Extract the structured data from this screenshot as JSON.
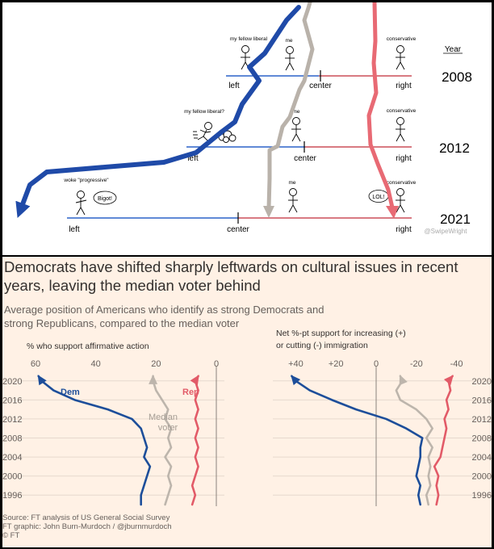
{
  "meme": {
    "year_header": "Year",
    "watermark": "@SwipeWright",
    "axis_labels": {
      "left": "left",
      "center": "center",
      "right": "right"
    },
    "rows": [
      {
        "year": "2008",
        "left_figure_label": "my fellow liberal",
        "me_label": "me",
        "right_figure_label": "conservative"
      },
      {
        "year": "2012",
        "left_figure_label": "my fellow liberal?",
        "me_label": "me",
        "right_figure_label": "conservative"
      },
      {
        "year": "2021",
        "left_figure_label": "woke \"progressive\"",
        "me_label": "me",
        "right_figure_label": "conservative",
        "left_bubble": "Bigot!",
        "right_bubble": "LOL!"
      }
    ],
    "colors": {
      "liberal": "#1f4aa8",
      "me": "#b9b2aa",
      "conservative": "#e86a74"
    }
  },
  "ft": {
    "title": "Democrats have shifted sharply leftwards on cultural issues in recent years, leaving the median voter behind",
    "subtitle": "Average position of Americans who identify as strong Democrats and strong Republicans, compared to the median voter",
    "source_line": "Source: FT analysis of US General Social Survey",
    "graphic_line": "FT graphic: John Burn-Murdoch / @jburnmurdoch",
    "copyright": "© FT",
    "colors": {
      "dem": "#1d4e9a",
      "rep": "#e25b68",
      "median": "#bdb5ac",
      "text": "#33302e",
      "muted": "#66605c"
    }
  },
  "chart_data": [
    {
      "type": "line",
      "title": "% who support affirmative action",
      "x_reversed": true,
      "xlim": [
        60,
        0
      ],
      "ylim": [
        1994,
        2022
      ],
      "x_ticks": [
        "60",
        "40",
        "20",
        "0"
      ],
      "y_ticks": [
        "2020",
        "2016",
        "2012",
        "2008",
        "2004",
        "2000",
        "1996"
      ],
      "series": [
        {
          "name": "Dem",
          "points": [
            [
              25,
              1994
            ],
            [
              25,
              1996
            ],
            [
              24,
              1998
            ],
            [
              23,
              2000
            ],
            [
              22,
              2002
            ],
            [
              24,
              2004
            ],
            [
              23,
              2006
            ],
            [
              24,
              2008
            ],
            [
              25,
              2010
            ],
            [
              28,
              2012
            ],
            [
              36,
              2014
            ],
            [
              47,
              2016
            ],
            [
              54,
              2018
            ],
            [
              58,
              2020
            ],
            [
              59,
              2021
            ]
          ]
        },
        {
          "name": "Median voter",
          "points": [
            [
              17,
              1994
            ],
            [
              16,
              1996
            ],
            [
              15,
              1998
            ],
            [
              16,
              2000
            ],
            [
              15,
              2002
            ],
            [
              17,
              2004
            ],
            [
              15,
              2006
            ],
            [
              16,
              2008
            ],
            [
              15,
              2010
            ],
            [
              17,
              2012
            ],
            [
              16,
              2014
            ],
            [
              18,
              2016
            ],
            [
              20,
              2018
            ],
            [
              21,
              2020
            ],
            [
              21,
              2021
            ]
          ]
        },
        {
          "name": "Rep",
          "points": [
            [
              8,
              1994
            ],
            [
              7,
              1996
            ],
            [
              8,
              1998
            ],
            [
              7,
              2000
            ],
            [
              6,
              2002
            ],
            [
              7,
              2004
            ],
            [
              6,
              2006
            ],
            [
              7,
              2008
            ],
            [
              6,
              2010
            ],
            [
              7,
              2012
            ],
            [
              6,
              2014
            ],
            [
              7,
              2016
            ],
            [
              6,
              2018
            ],
            [
              7,
              2020
            ],
            [
              6,
              2021
            ]
          ]
        }
      ],
      "annotations": [
        "Dem",
        "Median voter",
        "Rep"
      ]
    },
    {
      "type": "line",
      "title": "Net %-pt support for increasing (+) or cutting (-) immigration",
      "x_reversed": true,
      "xlim": [
        45,
        -45
      ],
      "ylim": [
        1994,
        2022
      ],
      "x_ticks": [
        "+40",
        "+20",
        "0",
        "-20",
        "-40"
      ],
      "y_ticks": [
        "2020",
        "2016",
        "2012",
        "2008",
        "2004",
        "2000",
        "1996"
      ],
      "series": [
        {
          "name": "Dem",
          "points": [
            [
              -22,
              1994
            ],
            [
              -21,
              1996
            ],
            [
              -22,
              1998
            ],
            [
              -20,
              2000
            ],
            [
              -21,
              2002
            ],
            [
              -22,
              2004
            ],
            [
              -22,
              2006
            ],
            [
              -23,
              2008
            ],
            [
              -15,
              2010
            ],
            [
              -5,
              2012
            ],
            [
              10,
              2014
            ],
            [
              22,
              2016
            ],
            [
              33,
              2018
            ],
            [
              40,
              2020
            ],
            [
              42,
              2021
            ]
          ]
        },
        {
          "name": "Median voter",
          "points": [
            [
              -26,
              1994
            ],
            [
              -25,
              1996
            ],
            [
              -27,
              1998
            ],
            [
              -26,
              2000
            ],
            [
              -27,
              2002
            ],
            [
              -26,
              2004
            ],
            [
              -28,
              2006
            ],
            [
              -25,
              2008
            ],
            [
              -28,
              2010
            ],
            [
              -25,
              2012
            ],
            [
              -20,
              2014
            ],
            [
              -12,
              2016
            ],
            [
              -10,
              2018
            ],
            [
              -13,
              2020
            ],
            [
              -12,
              2021
            ]
          ]
        },
        {
          "name": "Rep",
          "points": [
            [
              -30,
              1994
            ],
            [
              -31,
              1996
            ],
            [
              -30,
              1998
            ],
            [
              -31,
              2000
            ],
            [
              -29,
              2002
            ],
            [
              -32,
              2004
            ],
            [
              -33,
              2006
            ],
            [
              -34,
              2008
            ],
            [
              -35,
              2010
            ],
            [
              -34,
              2012
            ],
            [
              -36,
              2014
            ],
            [
              -35,
              2016
            ],
            [
              -37,
              2018
            ],
            [
              -36,
              2020
            ],
            [
              -38,
              2021
            ]
          ]
        }
      ]
    }
  ]
}
